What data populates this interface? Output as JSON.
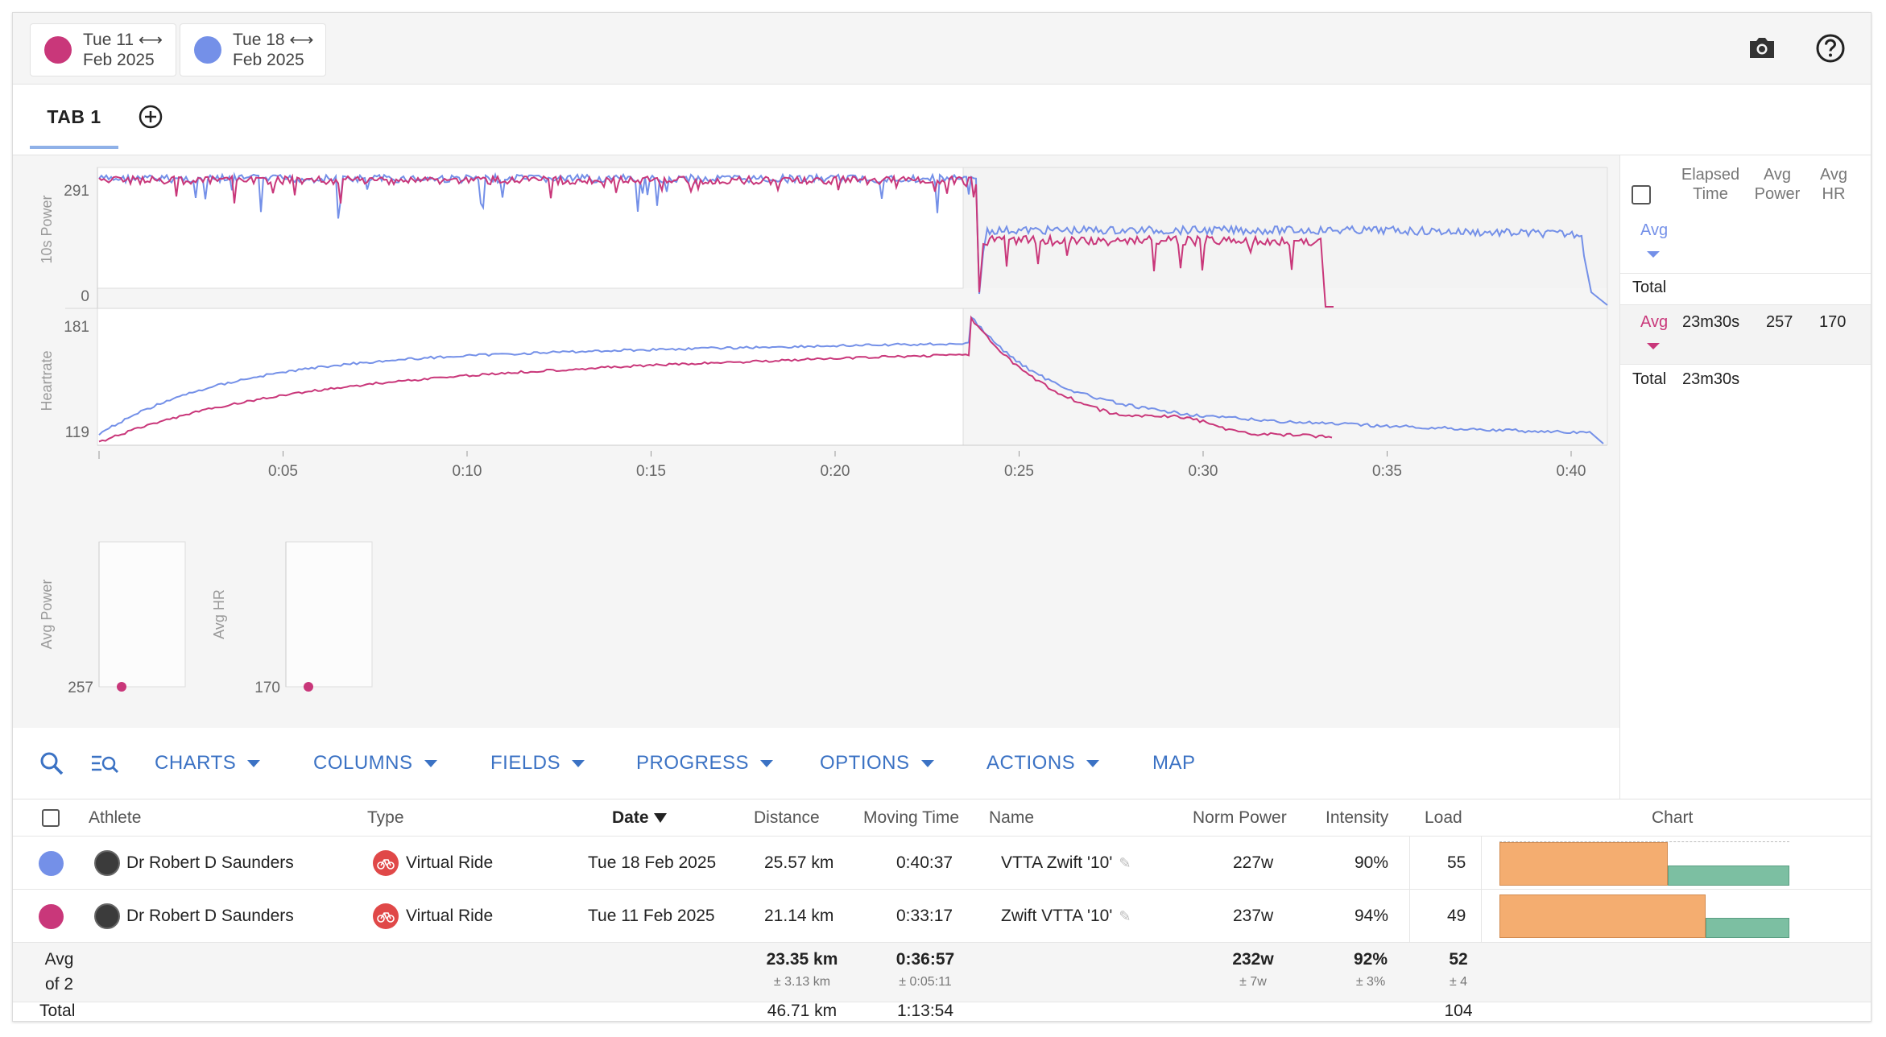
{
  "colors": {
    "pink": "#c9377a",
    "blue": "#7490e8",
    "accent": "#3b72c4",
    "orange": "#f4ad70",
    "green": "#7cbfa2"
  },
  "chips": [
    {
      "line1": "Tue 11 ⟷",
      "line2": "Feb 2025",
      "color": "#c9377a"
    },
    {
      "line1": "Tue 18 ⟷",
      "line2": "Feb 2025",
      "color": "#7490e8"
    }
  ],
  "topbar": {
    "camera_icon": "camera-icon",
    "help_icon": "help-icon"
  },
  "tabs": [
    {
      "label": "TAB 1"
    }
  ],
  "charts": {
    "power_label": "10s Power",
    "power_max": "291",
    "power_min": "0",
    "hr_label": "Heartrate",
    "hr_max": "181",
    "hr_min": "119",
    "x_ticks": [
      "0:05",
      "0:10",
      "0:15",
      "0:20",
      "0:25",
      "0:30",
      "0:35",
      "0:40"
    ],
    "avg_power_label": "Avg Power",
    "avg_power_value": "257",
    "avg_hr_label": "Avg HR",
    "avg_hr_value": "170"
  },
  "side": {
    "h_elapsed": "Elapsed Time",
    "h_power": "Avg Power",
    "h_hr": "Avg HR",
    "blue_avg": "Avg",
    "blue_total": "Total",
    "pink_avg": "Avg",
    "pink_elapsed": "23m30s",
    "pink_power": "257",
    "pink_hr": "170",
    "pink_total": "Total",
    "pink_total_elapsed": "23m30s"
  },
  "toolbar": {
    "search_icon": "search-icon",
    "filter_icon": "filter-search-icon",
    "charts": "CHARTS",
    "columns": "COLUMNS",
    "fields": "FIELDS",
    "progress": "PROGRESS",
    "options": "OPTIONS",
    "actions": "ACTIONS",
    "map": "MAP"
  },
  "table": {
    "headers": {
      "athlete": "Athlete",
      "type": "Type",
      "date": "Date",
      "distance": "Distance",
      "moving_time": "Moving Time",
      "name": "Name",
      "norm_power": "Norm Power",
      "intensity": "Intensity",
      "load": "Load",
      "chart": "Chart"
    },
    "rows": [
      {
        "athlete": "Dr Robert D Saunders",
        "type": "Virtual Ride",
        "date": "Tue 18 Feb 2025",
        "distance": "25.57 km",
        "moving_time": "0:40:37",
        "name": "VTTA Zwift '10'",
        "norm_power": "227w",
        "intensity": "90%",
        "load": "55",
        "bar_orange": 0.58,
        "bar_green": 0.42
      },
      {
        "athlete": "Dr Robert D Saunders",
        "type": "Virtual Ride",
        "date": "Tue 11 Feb 2025",
        "distance": "21.14 km",
        "moving_time": "0:33:17",
        "name": "Zwift VTTA '10'",
        "norm_power": "237w",
        "intensity": "94%",
        "load": "49",
        "bar_orange": 0.71,
        "bar_green": 0.29
      }
    ],
    "avg": {
      "label1": "Avg",
      "label2": "of 2",
      "distance": "23.35 km",
      "distance_sd": "± 3.13 km",
      "moving_time": "0:36:57",
      "moving_time_sd": "± 0:05:11",
      "norm_power": "232w",
      "norm_power_sd": "± 7w",
      "intensity": "92%",
      "intensity_sd": "± 3%",
      "load": "52",
      "load_sd": "± 4"
    },
    "total": {
      "label": "Total",
      "distance": "46.71 km",
      "moving_time": "1:13:54",
      "load": "104"
    }
  }
}
